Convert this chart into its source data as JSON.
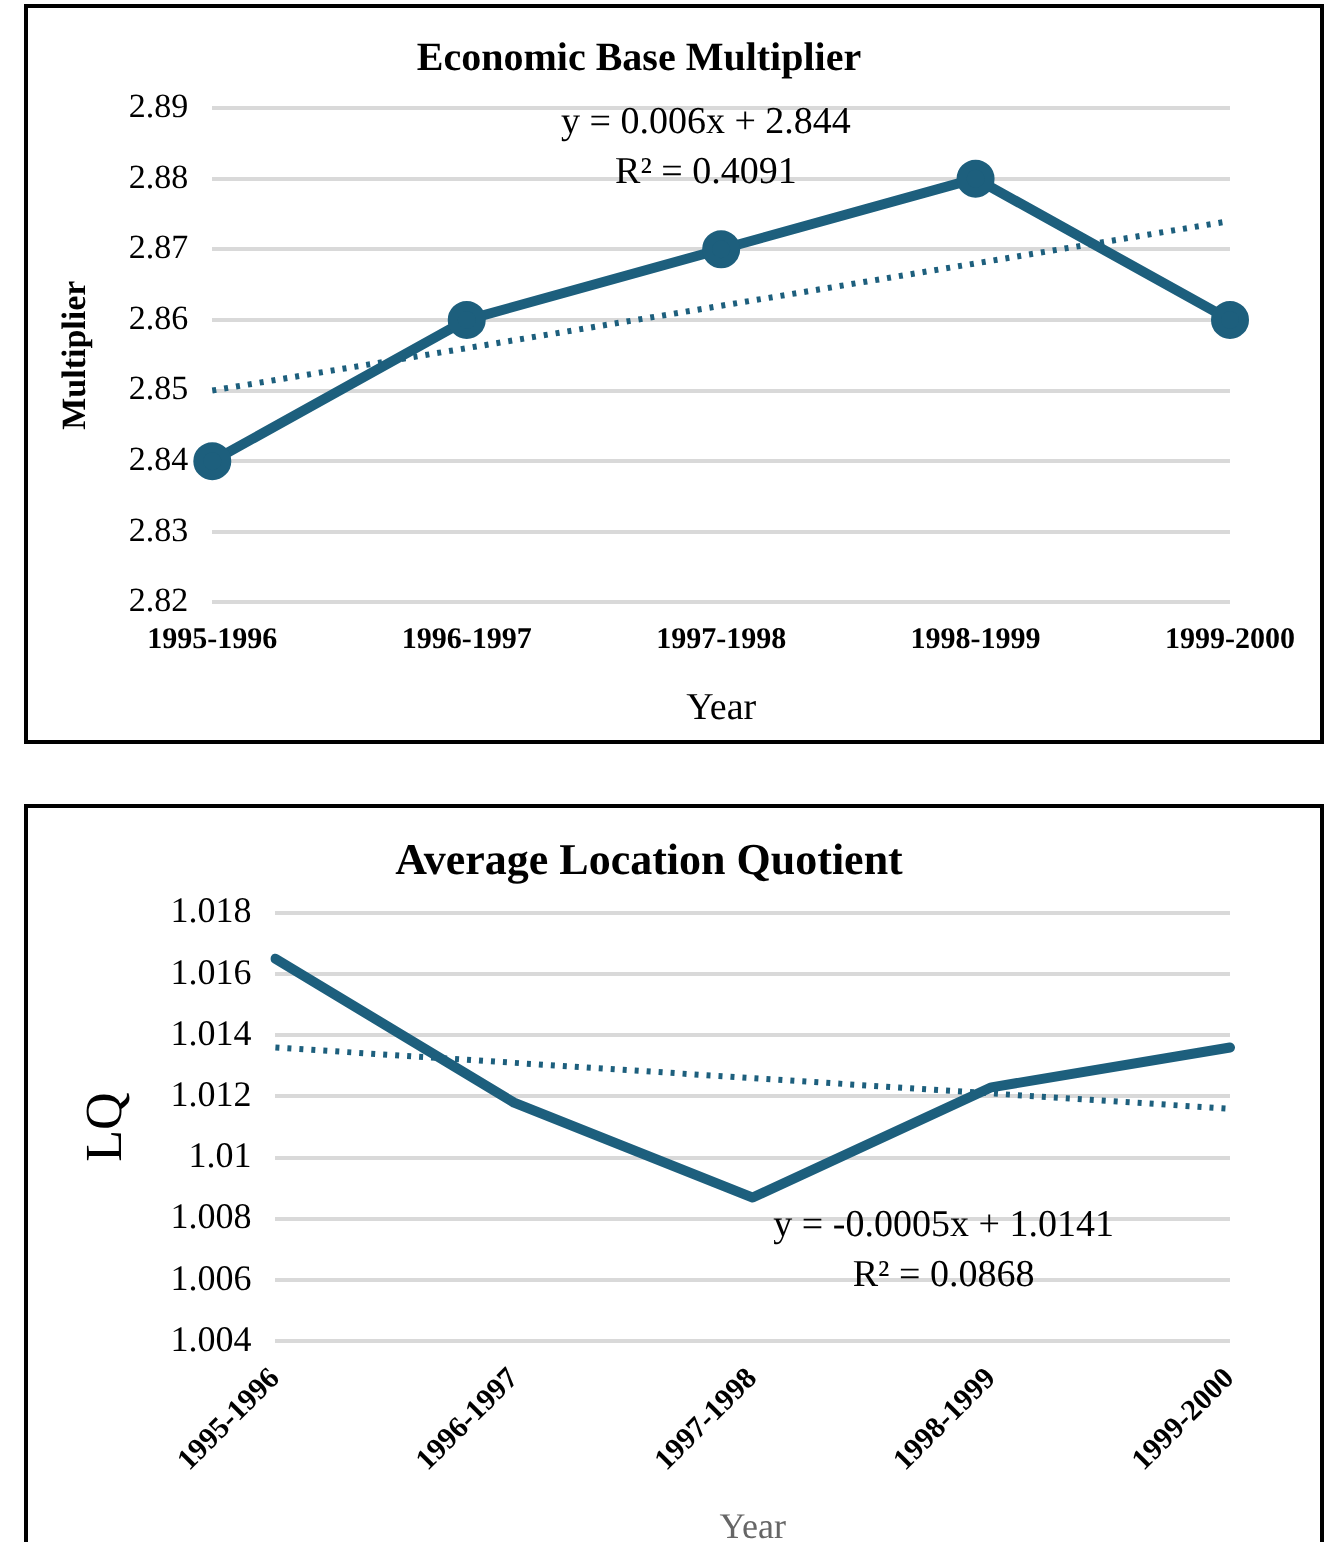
{
  "chart_data": [
    {
      "type": "line",
      "title": "Economic Base Multiplier",
      "xlabel": "Year",
      "ylabel": "Multiplier",
      "categories": [
        "1995-1996",
        "1996-1997",
        "1997-1998",
        "1998-1999",
        "1999-2000"
      ],
      "series": [
        {
          "color": "#1d5f7d",
          "values": [
            2.84,
            2.86,
            2.87,
            2.88,
            2.86
          ],
          "marker": "circle",
          "line_style": "solid"
        },
        {
          "color": "#1d5f7d",
          "values": [
            2.85,
            2.856,
            2.862,
            2.868,
            2.874
          ],
          "marker": "none",
          "line_style": "dotted"
        }
      ],
      "ylim": [
        2.82,
        2.89
      ],
      "yticks": [
        2.82,
        2.83,
        2.84,
        2.85,
        2.86,
        2.87,
        2.88,
        2.89
      ],
      "grid": "y",
      "legend": false,
      "annotations": [
        "y = 0.006x + 2.844",
        "R² = 0.4091"
      ]
    },
    {
      "type": "line",
      "title": "Average Location Quotient",
      "xlabel": "Year",
      "ylabel": "LQ",
      "categories": [
        "1995-1996",
        "1996-1997",
        "1997-1998",
        "1998-1999",
        "1999-2000"
      ],
      "series": [
        {
          "color": "#1d5f7d",
          "values": [
            1.0165,
            1.0118,
            1.0087,
            1.0123,
            1.0136
          ],
          "marker": "none",
          "line_style": "solid"
        },
        {
          "color": "#1d5f7d",
          "values": [
            1.0136,
            1.0131,
            1.0126,
            1.0121,
            1.0116
          ],
          "marker": "none",
          "line_style": "dotted"
        }
      ],
      "ylim": [
        1.004,
        1.018
      ],
      "yticks": [
        1.004,
        1.006,
        1.008,
        1.01,
        1.012,
        1.014,
        1.016,
        1.018
      ],
      "grid": "y",
      "legend": false,
      "annotations": [
        "y = -0.0005x + 1.0141",
        "R² = 0.0868"
      ]
    }
  ]
}
